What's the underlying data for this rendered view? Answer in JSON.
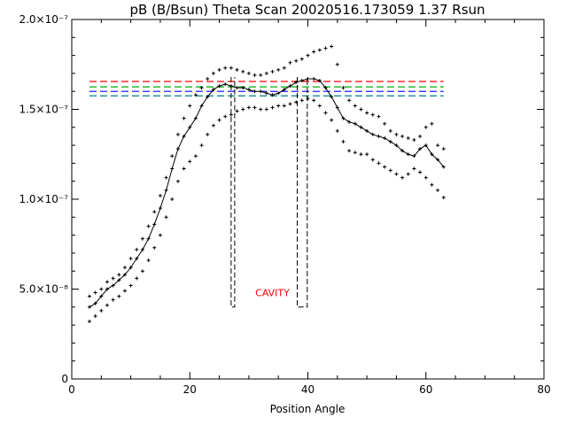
{
  "chart_data": {
    "type": "scatter",
    "title": "pB (B/Bsun) Theta Scan 20020516.173059  1.37 Rsun",
    "xlabel": "Position Angle",
    "ylabel": "",
    "xlim": [
      0,
      80
    ],
    "ylim": [
      0,
      2e-07
    ],
    "x_ticks": [
      0,
      20,
      40,
      60,
      80
    ],
    "x_tick_labels": [
      "0",
      "20",
      "40",
      "60",
      "80"
    ],
    "y_ticks": [
      0,
      5e-08,
      1e-07,
      1.5e-07,
      2e-07
    ],
    "y_tick_labels": [
      "0",
      "5.0×10⁻⁸",
      "1.0×10⁻⁷",
      "1.5×10⁻⁷",
      "2.0×10⁻⁷"
    ],
    "grid": false,
    "legend": "none",
    "annotation": {
      "text": "CAVITY",
      "x": 34,
      "y": 4.6e-08,
      "color": "#ff0000"
    },
    "cavity_bounds": [
      {
        "x1": 27.0,
        "x2": 27.6,
        "y_bottom": 4e-08,
        "y_top": 1.68e-07
      },
      {
        "x1": 38.2,
        "x2": 39.9,
        "y_bottom": 4e-08,
        "y_top": 1.68e-07
      }
    ],
    "reference_lines": [
      {
        "y": 1.655e-07,
        "x_start": 3,
        "x_end": 63,
        "color": "#ff0000"
      },
      {
        "y": 1.625e-07,
        "x_start": 3,
        "x_end": 63,
        "color": "#00aa00"
      },
      {
        "y": 1.6e-07,
        "x_start": 3,
        "x_end": 63,
        "color": "#0000ff"
      },
      {
        "y": 1.575e-07,
        "x_start": 3,
        "x_end": 63,
        "color": "#008080"
      }
    ],
    "series": [
      {
        "role": "upper",
        "marker": "plus",
        "line": false,
        "x": [
          3,
          4,
          5,
          6,
          7,
          8,
          9,
          10,
          11,
          12,
          13,
          14,
          15,
          16,
          17,
          18,
          19,
          20,
          21,
          22,
          23,
          24,
          25,
          26,
          27,
          28,
          29,
          30,
          31,
          32,
          33,
          34,
          35,
          36,
          37,
          38,
          39,
          40,
          41,
          42,
          43,
          44,
          45,
          46,
          47,
          48,
          49,
          50,
          51,
          52,
          53,
          54,
          55,
          56,
          57,
          58,
          59,
          60,
          61,
          62,
          63
        ],
        "y": [
          4.6e-08,
          4.8e-08,
          5e-08,
          5.4e-08,
          5.6e-08,
          5.8e-08,
          6.2e-08,
          6.7e-08,
          7.2e-08,
          7.8e-08,
          8.5e-08,
          9.3e-08,
          1.02e-07,
          1.12e-07,
          1.24e-07,
          1.36e-07,
          1.45e-07,
          1.52e-07,
          1.58e-07,
          1.62e-07,
          1.67e-07,
          1.7e-07,
          1.72e-07,
          1.73e-07,
          1.73e-07,
          1.72e-07,
          1.71e-07,
          1.7e-07,
          1.69e-07,
          1.69e-07,
          1.7e-07,
          1.71e-07,
          1.72e-07,
          1.73e-07,
          1.76e-07,
          1.77e-07,
          1.78e-07,
          1.8e-07,
          1.82e-07,
          1.83e-07,
          1.84e-07,
          1.85e-07,
          1.75e-07,
          1.62e-07,
          1.55e-07,
          1.52e-07,
          1.5e-07,
          1.48e-07,
          1.47e-07,
          1.46e-07,
          1.42e-07,
          1.38e-07,
          1.36e-07,
          1.35e-07,
          1.34e-07,
          1.33e-07,
          1.35e-07,
          1.4e-07,
          1.42e-07,
          1.3e-07,
          1.28e-07
        ]
      },
      {
        "role": "mean",
        "marker": "plus",
        "line": true,
        "x": [
          3,
          4,
          5,
          6,
          7,
          8,
          9,
          10,
          11,
          12,
          13,
          14,
          15,
          16,
          17,
          18,
          19,
          20,
          21,
          22,
          23,
          24,
          25,
          26,
          27,
          28,
          29,
          30,
          31,
          32,
          33,
          34,
          35,
          36,
          37,
          38,
          39,
          40,
          41,
          42,
          43,
          44,
          45,
          46,
          47,
          48,
          49,
          50,
          51,
          52,
          53,
          54,
          55,
          56,
          57,
          58,
          59,
          60,
          61,
          62,
          63
        ],
        "y": [
          4e-08,
          4.2e-08,
          4.6e-08,
          5e-08,
          5.2e-08,
          5.5e-08,
          5.8e-08,
          6.2e-08,
          6.7e-08,
          7.2e-08,
          7.8e-08,
          8.6e-08,
          9.5e-08,
          1.05e-07,
          1.17e-07,
          1.28e-07,
          1.35e-07,
          1.4e-07,
          1.45e-07,
          1.52e-07,
          1.57e-07,
          1.61e-07,
          1.63e-07,
          1.64e-07,
          1.63e-07,
          1.62e-07,
          1.62e-07,
          1.61e-07,
          1.6e-07,
          1.6e-07,
          1.59e-07,
          1.58e-07,
          1.59e-07,
          1.61e-07,
          1.63e-07,
          1.65e-07,
          1.66e-07,
          1.67e-07,
          1.67e-07,
          1.66e-07,
          1.62e-07,
          1.57e-07,
          1.51e-07,
          1.45e-07,
          1.43e-07,
          1.42e-07,
          1.4e-07,
          1.38e-07,
          1.36e-07,
          1.35e-07,
          1.34e-07,
          1.32e-07,
          1.3e-07,
          1.27e-07,
          1.25e-07,
          1.24e-07,
          1.28e-07,
          1.3e-07,
          1.25e-07,
          1.22e-07,
          1.18e-07
        ]
      },
      {
        "role": "lower",
        "marker": "plus",
        "line": false,
        "x": [
          3,
          4,
          5,
          6,
          7,
          8,
          9,
          10,
          11,
          12,
          13,
          14,
          15,
          16,
          17,
          18,
          19,
          20,
          21,
          22,
          23,
          24,
          25,
          26,
          27,
          28,
          29,
          30,
          31,
          32,
          33,
          34,
          35,
          36,
          37,
          38,
          39,
          40,
          41,
          42,
          43,
          44,
          45,
          46,
          47,
          48,
          49,
          50,
          51,
          52,
          53,
          54,
          55,
          56,
          57,
          58,
          59,
          60,
          61,
          62,
          63
        ],
        "y": [
          3.2e-08,
          3.5e-08,
          3.8e-08,
          4.1e-08,
          4.4e-08,
          4.6e-08,
          4.9e-08,
          5.2e-08,
          5.6e-08,
          6e-08,
          6.6e-08,
          7.3e-08,
          8e-08,
          9e-08,
          1e-07,
          1.1e-07,
          1.17e-07,
          1.21e-07,
          1.24e-07,
          1.3e-07,
          1.36e-07,
          1.41e-07,
          1.44e-07,
          1.46e-07,
          1.47e-07,
          1.49e-07,
          1.5e-07,
          1.51e-07,
          1.51e-07,
          1.5e-07,
          1.5e-07,
          1.51e-07,
          1.52e-07,
          1.52e-07,
          1.53e-07,
          1.54e-07,
          1.55e-07,
          1.56e-07,
          1.55e-07,
          1.52e-07,
          1.48e-07,
          1.44e-07,
          1.38e-07,
          1.32e-07,
          1.27e-07,
          1.26e-07,
          1.25e-07,
          1.25e-07,
          1.22e-07,
          1.2e-07,
          1.18e-07,
          1.16e-07,
          1.14e-07,
          1.12e-07,
          1.14e-07,
          1.17e-07,
          1.15e-07,
          1.12e-07,
          1.08e-07,
          1.05e-07,
          1.01e-07
        ]
      }
    ]
  }
}
